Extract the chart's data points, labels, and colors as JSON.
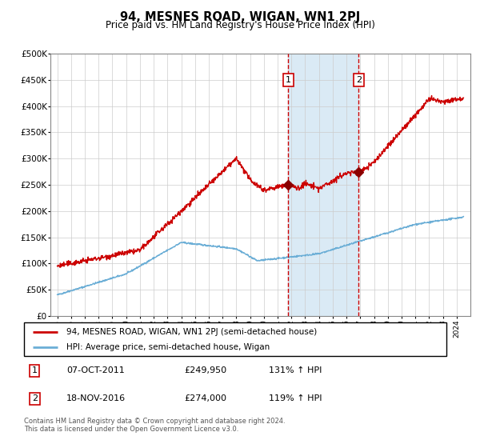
{
  "title": "94, MESNES ROAD, WIGAN, WN1 2PJ",
  "subtitle": "Price paid vs. HM Land Registry's House Price Index (HPI)",
  "footer": "Contains HM Land Registry data © Crown copyright and database right 2024.\nThis data is licensed under the Open Government Licence v3.0.",
  "legend_line1": "94, MESNES ROAD, WIGAN, WN1 2PJ (semi-detached house)",
  "legend_line2": "HPI: Average price, semi-detached house, Wigan",
  "sale1_label": "1",
  "sale1_date": "07-OCT-2011",
  "sale1_price": "£249,950",
  "sale1_hpi": "131% ↑ HPI",
  "sale2_label": "2",
  "sale2_date": "18-NOV-2016",
  "sale2_price": "£274,000",
  "sale2_hpi": "119% ↑ HPI",
  "ylim": [
    0,
    500000
  ],
  "yticks": [
    0,
    50000,
    100000,
    150000,
    200000,
    250000,
    300000,
    350000,
    400000,
    450000,
    500000
  ],
  "hpi_color": "#6baed6",
  "price_color": "#cc0000",
  "marker_color": "#8b0000",
  "vline_color": "#cc0000",
  "shade_color": "#daeaf5",
  "grid_color": "#cccccc",
  "background_color": "#ffffff",
  "sale1_x": 2011.77,
  "sale1_y": 249950,
  "sale2_x": 2016.88,
  "sale2_y": 274000,
  "xlim_left": 1994.5,
  "xlim_right": 2025.0
}
